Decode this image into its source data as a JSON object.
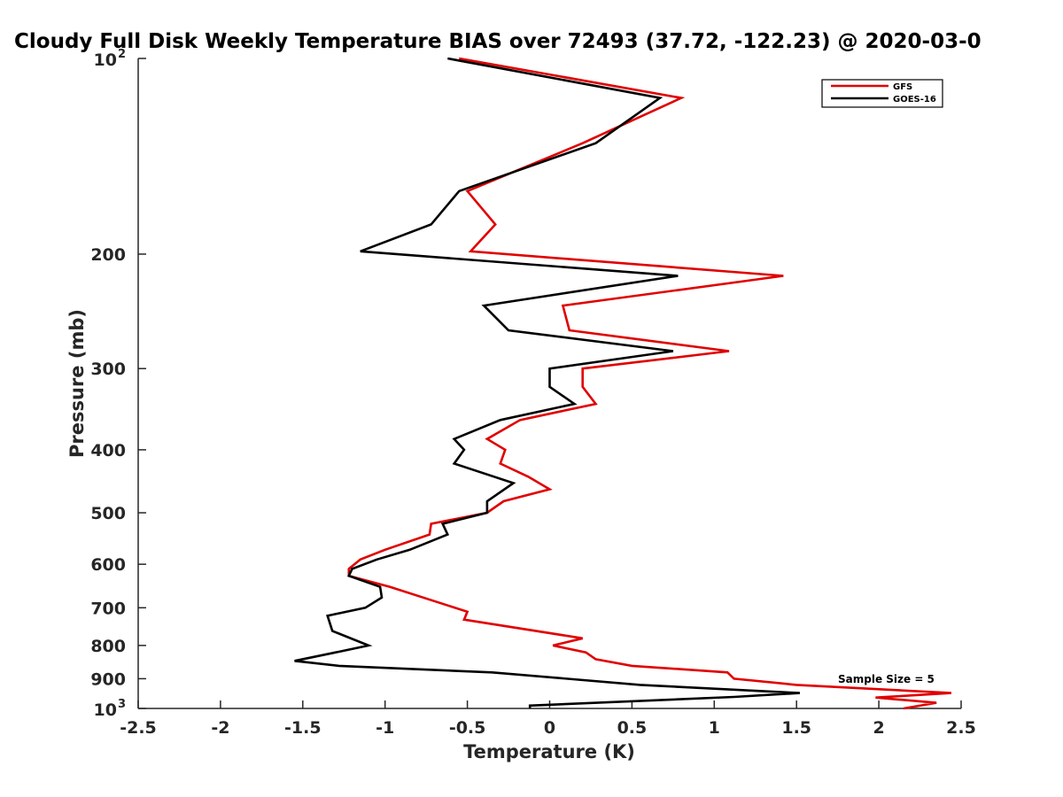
{
  "chart_data": {
    "type": "line",
    "title": "Cloudy Full Disk Weekly Temperature BIAS over 72493 (37.72, -122.23) @ 2020-03-0",
    "xlabel": "Temperature (K)",
    "ylabel": "Pressure (mb)",
    "xlim": [
      -2.5,
      2.5
    ],
    "ylim": [
      100,
      1000
    ],
    "y_scale": "log",
    "y_reversed": true,
    "grid": false,
    "legend_position": "top-right",
    "x_ticks": [
      "-2.5",
      "-2",
      "-1.5",
      "-1",
      "-0.5",
      "0",
      "0.5",
      "1",
      "1.5",
      "2",
      "2.5"
    ],
    "y_ticks": [
      {
        "value": 100,
        "base": "10",
        "exp": "2"
      },
      {
        "value": 200,
        "label": "200"
      },
      {
        "value": 300,
        "label": "300"
      },
      {
        "value": 400,
        "label": "400"
      },
      {
        "value": 500,
        "label": "500"
      },
      {
        "value": 600,
        "label": "600"
      },
      {
        "value": 700,
        "label": "700"
      },
      {
        "value": 800,
        "label": "800"
      },
      {
        "value": 900,
        "label": "900"
      },
      {
        "value": 1000,
        "base": "10",
        "exp": "3"
      }
    ],
    "annotation": "Sample Size = 5",
    "series": [
      {
        "name": "GFS",
        "color": "#e00000",
        "points": [
          [
            -0.55,
            100
          ],
          [
            0.8,
            115
          ],
          [
            0.2,
            135
          ],
          [
            -0.5,
            160
          ],
          [
            -0.33,
            180
          ],
          [
            -0.48,
            198
          ],
          [
            1.42,
            216
          ],
          [
            0.08,
            240
          ],
          [
            0.12,
            262
          ],
          [
            1.09,
            282
          ],
          [
            0.2,
            300
          ],
          [
            0.2,
            320
          ],
          [
            0.28,
            340
          ],
          [
            -0.18,
            360
          ],
          [
            -0.38,
            385
          ],
          [
            -0.27,
            400
          ],
          [
            -0.3,
            420
          ],
          [
            -0.13,
            440
          ],
          [
            0,
            460
          ],
          [
            -0.28,
            480
          ],
          [
            -0.38,
            500
          ],
          [
            -0.72,
            520
          ],
          [
            -0.73,
            540
          ],
          [
            -1.0,
            570
          ],
          [
            -1.15,
            590
          ],
          [
            -1.22,
            610
          ],
          [
            -1.22,
            625
          ],
          [
            -0.97,
            650
          ],
          [
            -0.5,
            710
          ],
          [
            -0.52,
            730
          ],
          [
            0.2,
            780
          ],
          [
            0.02,
            800
          ],
          [
            0.22,
            820
          ],
          [
            0.28,
            840
          ],
          [
            0.5,
            860
          ],
          [
            1.08,
            880
          ],
          [
            1.12,
            900
          ],
          [
            1.5,
            920
          ],
          [
            2.44,
            947
          ],
          [
            1.98,
            962
          ],
          [
            2.35,
            980
          ],
          [
            2.15,
            1000
          ]
        ]
      },
      {
        "name": "GOES-16",
        "color": "#000000",
        "points": [
          [
            -0.62,
            100
          ],
          [
            0.67,
            115
          ],
          [
            0.28,
            135
          ],
          [
            -0.55,
            160
          ],
          [
            -0.72,
            180
          ],
          [
            -1.15,
            198
          ],
          [
            0.78,
            216
          ],
          [
            -0.4,
            240
          ],
          [
            -0.25,
            262
          ],
          [
            0.75,
            282
          ],
          [
            0,
            300
          ],
          [
            0,
            320
          ],
          [
            0.15,
            340
          ],
          [
            -0.3,
            360
          ],
          [
            -0.58,
            385
          ],
          [
            -0.52,
            400
          ],
          [
            -0.58,
            420
          ],
          [
            -0.22,
            450
          ],
          [
            -0.38,
            480
          ],
          [
            -0.38,
            500
          ],
          [
            -0.65,
            520
          ],
          [
            -0.62,
            540
          ],
          [
            -0.85,
            570
          ],
          [
            -1.05,
            590
          ],
          [
            -1.2,
            610
          ],
          [
            -1.22,
            625
          ],
          [
            -1.03,
            650
          ],
          [
            -1.02,
            675
          ],
          [
            -1.12,
            700
          ],
          [
            -1.35,
            720
          ],
          [
            -1.32,
            760
          ],
          [
            -1.1,
            800
          ],
          [
            -1.3,
            820
          ],
          [
            -1.55,
            845
          ],
          [
            -1.28,
            860
          ],
          [
            -0.35,
            880
          ],
          [
            0.55,
            920
          ],
          [
            1.52,
            947
          ],
          [
            1.12,
            960
          ],
          [
            -0.12,
            990
          ],
          [
            -0.12,
            1000
          ]
        ]
      }
    ]
  }
}
